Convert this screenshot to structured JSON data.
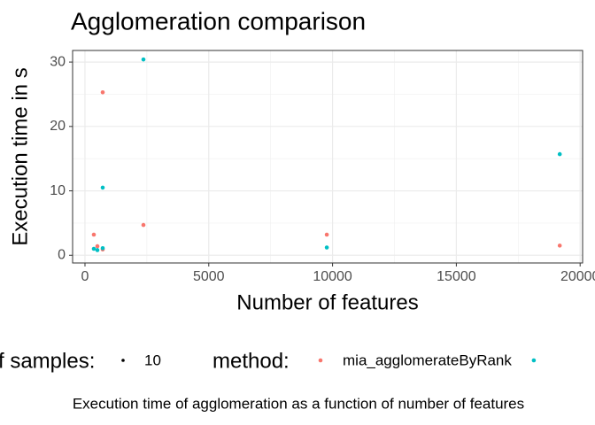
{
  "chart_data": {
    "type": "scatter",
    "title": "Agglomeration comparison",
    "x_label": "Number of features",
    "y_label": "Execution time in s",
    "caption": "Execution time of agglomeration as a function of number of features",
    "size_legend_title": "f samples:",
    "size_legend_value": "10",
    "color_legend_title": "method:",
    "series": [
      {
        "name": "mia_agglomerateByRank",
        "color": "#f8766d",
        "x": [
          358,
          501,
          716,
          716,
          2361,
          9767,
          19177
        ],
        "values": [
          3.2,
          1.4,
          25.3,
          0.9,
          4.7,
          3.2,
          1.5
        ]
      },
      {
        "color": "#00bfc4",
        "x": [
          358,
          501,
          716,
          716,
          2361,
          9767,
          19177
        ],
        "values": [
          1.0,
          0.8,
          10.5,
          1.1,
          30.4,
          1.2,
          15.7
        ]
      }
    ],
    "xlim": [
      -500,
      20100
    ],
    "ylim": [
      -1.2,
      31.8
    ],
    "xticks": [
      0,
      5000,
      10000,
      15000,
      20000
    ],
    "yticks": [
      0,
      10,
      20,
      30
    ],
    "x_minor_grid": [
      2500,
      7500,
      12500,
      17500
    ],
    "y_minor_grid": [
      5,
      15,
      25
    ],
    "grid": true
  }
}
